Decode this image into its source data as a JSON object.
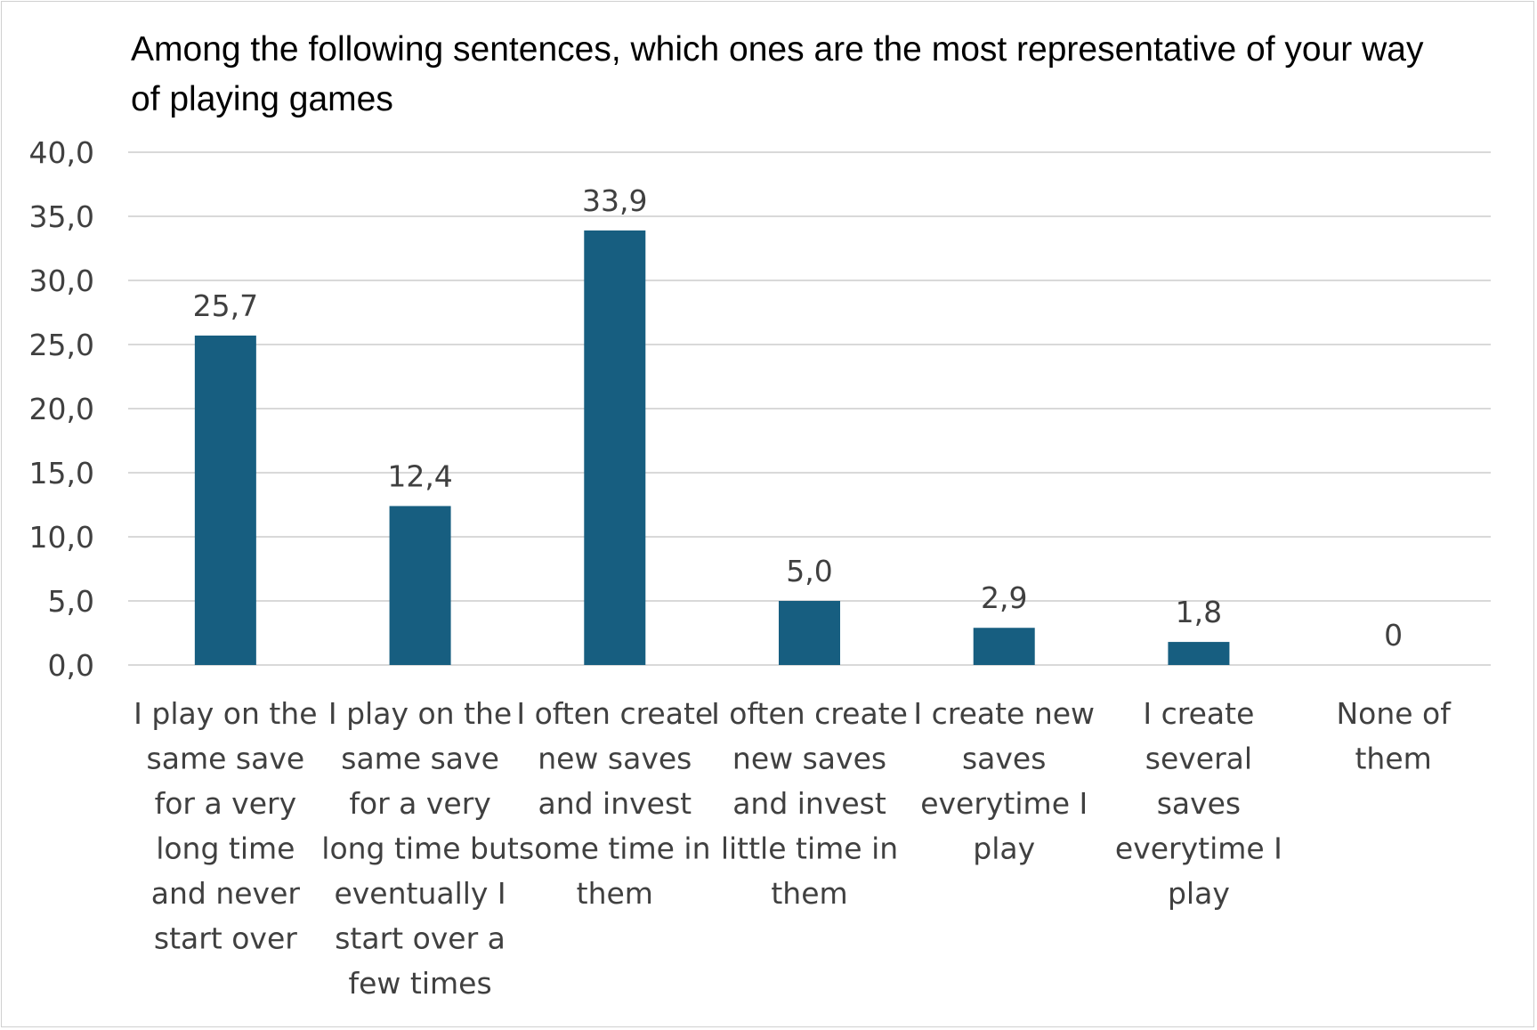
{
  "chart_data": {
    "type": "bar",
    "title": "Among the following sentences, which ones are the most representative of your way of playing games",
    "categories": [
      "I play on the same save for a very long time and never start over",
      "I play on the same save for a very long time but eventually I start over a few times",
      "I often create new saves and invest some time in them",
      "I often create new saves and invest little time in them",
      "I create new saves everytime I play",
      "I create several saves everytime I play",
      "None of them"
    ],
    "category_lines": [
      [
        "I play on the",
        "same save",
        "for a very",
        "long time",
        "and never",
        "start over"
      ],
      [
        "I play on the",
        "same save",
        "for a very",
        "long time but",
        "eventually I",
        "start over a",
        "few times"
      ],
      [
        "I often create",
        "new saves",
        "and invest",
        "some time in",
        "them"
      ],
      [
        "I often create",
        "new saves",
        "and invest",
        "little time in",
        "them"
      ],
      [
        "I create new",
        "saves",
        "everytime I",
        "play"
      ],
      [
        "I create",
        "several",
        "saves",
        "everytime I",
        "play"
      ],
      [
        "None of",
        "them"
      ]
    ],
    "values": [
      25.7,
      12.4,
      33.9,
      5.0,
      2.9,
      1.8,
      0
    ],
    "data_labels": [
      "25,7",
      "12,4",
      "33,9",
      "5,0",
      "2,9",
      "1,8",
      "0"
    ],
    "yticks": [
      0,
      5,
      10,
      15,
      20,
      25,
      30,
      35,
      40
    ],
    "ytick_labels": [
      "0,0",
      "5,0",
      "10,0",
      "15,0",
      "20,0",
      "25,0",
      "30,0",
      "35,0",
      "40,0"
    ],
    "ylim": [
      0,
      40
    ],
    "xlabel": "",
    "ylabel": "",
    "grid": true,
    "legend": "none",
    "bar_color": "#175e80",
    "grid_color": "#d9d9d9",
    "text_color": "#404040"
  }
}
